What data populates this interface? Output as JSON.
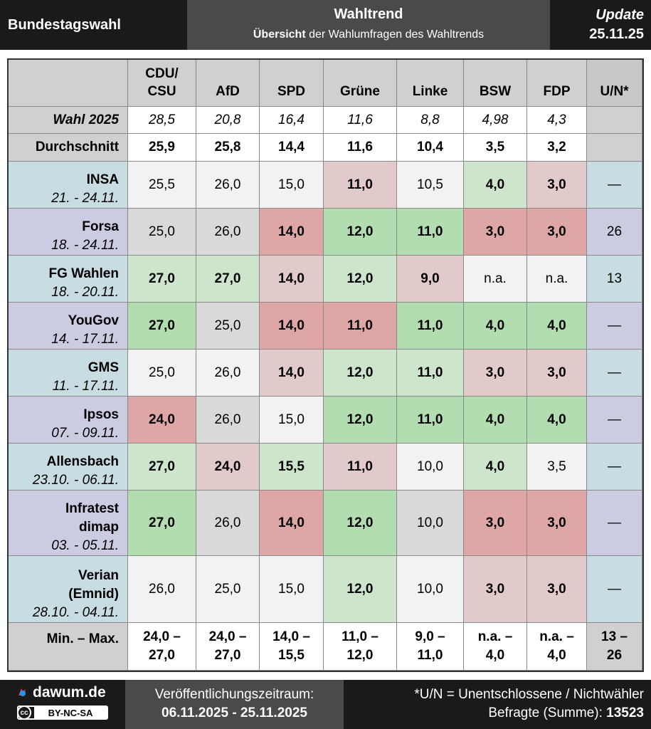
{
  "header": {
    "left_title": "Bundestagswahl",
    "center_title": "Wahltrend",
    "center_sub_bold": "Übersicht",
    "center_sub_rest": " der Wahlumfragen des Wahltrends",
    "update_label": "Update",
    "update_date": "25.11.25"
  },
  "table": {
    "columns": [
      {
        "line1": "CDU/",
        "line2": "CSU"
      },
      {
        "line1": "",
        "line2": "AfD"
      },
      {
        "line1": "",
        "line2": "SPD"
      },
      {
        "line1": "",
        "line2": "Grüne"
      },
      {
        "line1": "",
        "line2": "Linke"
      },
      {
        "line1": "",
        "line2": "BSW"
      },
      {
        "line1": "",
        "line2": "FDP"
      },
      {
        "line1": "",
        "line2": "U/N*"
      }
    ],
    "wahl": {
      "label": "Wahl 2025",
      "values": [
        "28,5",
        "20,8",
        "16,4",
        "11,6",
        "8,8",
        "4,98",
        "4,3",
        ""
      ]
    },
    "avg": {
      "label": "Durchschnitt",
      "values": [
        "25,9",
        "25,8",
        "14,4",
        "11,6",
        "10,4",
        "3,5",
        "3,2",
        ""
      ]
    },
    "institutes": [
      {
        "name": [
          "INSA"
        ],
        "date": "21. - 24.11.",
        "values": [
          "25,5",
          "26,0",
          "15,0",
          "11,0",
          "10,5",
          "4,0",
          "3,0",
          "—"
        ]
      },
      {
        "name": [
          "Forsa"
        ],
        "date": "18. - 24.11.",
        "values": [
          "25,0",
          "26,0",
          "14,0",
          "12,0",
          "11,0",
          "3,0",
          "3,0",
          "26"
        ]
      },
      {
        "name": [
          "FG Wahlen"
        ],
        "date": "18. - 20.11.",
        "values": [
          "27,0",
          "27,0",
          "14,0",
          "12,0",
          "9,0",
          "n.a.",
          "n.a.",
          "13"
        ]
      },
      {
        "name": [
          "YouGov"
        ],
        "date": "14. - 17.11.",
        "values": [
          "27,0",
          "25,0",
          "14,0",
          "11,0",
          "11,0",
          "4,0",
          "4,0",
          "—"
        ]
      },
      {
        "name": [
          "GMS"
        ],
        "date": "11. - 17.11.",
        "values": [
          "25,0",
          "26,0",
          "14,0",
          "12,0",
          "11,0",
          "3,0",
          "3,0",
          "—"
        ]
      },
      {
        "name": [
          "Ipsos"
        ],
        "date": "07. - 09.11.",
        "values": [
          "24,0",
          "26,0",
          "15,0",
          "12,0",
          "11,0",
          "4,0",
          "4,0",
          "—"
        ]
      },
      {
        "name": [
          "Allensbach"
        ],
        "date": "23.10. - 06.11.",
        "values": [
          "27,0",
          "24,0",
          "15,5",
          "11,0",
          "10,0",
          "4,0",
          "3,5",
          "—"
        ]
      },
      {
        "name": [
          "Infratest",
          "dimap"
        ],
        "date": "03. - 05.11.",
        "values": [
          "27,0",
          "26,0",
          "14,0",
          "12,0",
          "10,0",
          "3,0",
          "3,0",
          "—"
        ]
      },
      {
        "name": [
          "Verian",
          "(Emnid)"
        ],
        "date": "28.10. - 04.11.",
        "values": [
          "26,0",
          "25,0",
          "15,0",
          "12,0",
          "10,0",
          "3,0",
          "3,0",
          "—"
        ]
      }
    ],
    "minmax": {
      "label": "Min. – Max.",
      "values": [
        [
          "24,0 –",
          "27,0"
        ],
        [
          "24,0 –",
          "27,0"
        ],
        [
          "14,0 –",
          "15,5"
        ],
        [
          "11,0 –",
          "12,0"
        ],
        [
          "9,0 –",
          "11,0"
        ],
        [
          "n.a. –",
          "4,0"
        ],
        [
          "n.a. –",
          "4,0"
        ],
        [
          "13 –",
          "26"
        ]
      ]
    }
  },
  "footer": {
    "logo_text": "dawum.de",
    "license": "BY-NC-SA",
    "cc": "cc",
    "period_label": "Veröffentlichungszeitraum:",
    "period_value": "06.11.2025 - 25.11.2025",
    "note": "*U/N = Unentschlossene / Nichtwähler",
    "respondents_label": "Befragte (Summe): ",
    "respondents_value": "13523"
  },
  "colors": {
    "strong_green": "#b2ddb1",
    "light_green": "#cce5cc",
    "strong_red": "#dfa6a6",
    "light_red": "#e2caca",
    "neutral_light": "#f2f2f2",
    "neutral_grey": "#d9d9d9",
    "row_blue": "#c7dde2",
    "row_purple": "#cbcbe1"
  }
}
